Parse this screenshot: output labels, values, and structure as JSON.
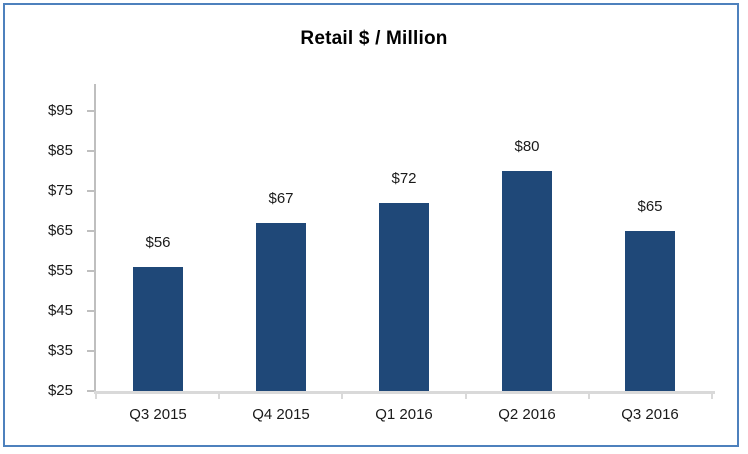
{
  "window": {
    "border_color": "#4E81BD",
    "background": "#FFFFFF"
  },
  "chart_data": {
    "type": "bar",
    "title": "Retail $ / Million",
    "categories": [
      "Q3 2015",
      "Q4 2015",
      "Q1 2016",
      "Q2 2016",
      "Q3 2016"
    ],
    "values": [
      56,
      67,
      72,
      80,
      65
    ],
    "data_labels": [
      "$56",
      "$67",
      "$72",
      "$80",
      "$65"
    ],
    "xlabel": "",
    "ylabel": "",
    "ylim": [
      25,
      95
    ],
    "y_tick_step": 10,
    "y_ticks": [
      {
        "value": 25,
        "label": "$25"
      },
      {
        "value": 35,
        "label": "$35"
      },
      {
        "value": 45,
        "label": "$45"
      },
      {
        "value": 55,
        "label": "$55"
      },
      {
        "value": 65,
        "label": "$65"
      },
      {
        "value": 75,
        "label": "$75"
      },
      {
        "value": 85,
        "label": "$85"
      },
      {
        "value": 95,
        "label": "$95"
      }
    ],
    "grid": false,
    "legend": "none",
    "colors": {
      "bar": "#1F4878",
      "y_axis_line": "#BFBFBF",
      "x_axis_line": "#D9D9D9",
      "text": "#1A1A1A"
    }
  }
}
